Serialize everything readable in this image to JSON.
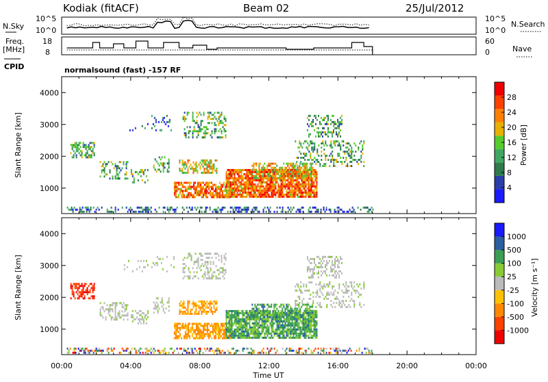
{
  "header": {
    "site": "Kodiak (fitACF)",
    "beam": "Beam 02",
    "date": "25/Jul/2012"
  },
  "noise_panel": {
    "left_label": "N.Sky",
    "right_label": "N.Search",
    "left_ticks": [
      "10^5",
      "10^0"
    ],
    "right_ticks": [
      "10^5",
      "10^0"
    ]
  },
  "freq_panel": {
    "left_label_1": "Freq.",
    "left_label_2": "[MHz]",
    "right_label": "Nave",
    "left_ticks": [
      "18",
      "8"
    ],
    "right_ticks": [
      "60",
      "0"
    ]
  },
  "cpid": {
    "label": "CPID",
    "value": "normalsound (fast) -157 RF"
  },
  "colors": {
    "power": [
      "#1a1aff",
      "#2a3fa8",
      "#2e7a4a",
      "#3fa860",
      "#55cc2a",
      "#e8b000",
      "#ff8000",
      "#ff4000",
      "#ee0000"
    ],
    "velocity": [
      "#ee0000",
      "#ff4000",
      "#ff8800",
      "#ffc000",
      "#bbbbbb",
      "#88cc33",
      "#3a9e55",
      "#2a5fa0",
      "#1a1aff"
    ]
  },
  "chart_data": [
    {
      "type": "heatmap",
      "name": "power",
      "ylabel": "Slant Range [km]",
      "xlabel": "Time UT",
      "x_range_hours": [
        0,
        24
      ],
      "ylim_km": [
        200,
        4500
      ],
      "y_ticks": [
        "1000",
        "2000",
        "3000",
        "4000"
      ],
      "x_ticks": [
        "00:00",
        "04:00",
        "08:00",
        "12:00",
        "16:00",
        "20:00",
        "00:00"
      ],
      "colorbar": {
        "label": "Power [dB]",
        "ticks": [
          "4",
          "8",
          "12",
          "16",
          "20",
          "24",
          "28"
        ],
        "range": [
          0,
          30
        ]
      },
      "data_extent_hours": [
        0.3,
        18.0
      ]
    },
    {
      "type": "heatmap",
      "name": "velocity",
      "ylabel": "Slant Range [km]",
      "xlabel": "Time UT",
      "x_range_hours": [
        0,
        24
      ],
      "ylim_km": [
        200,
        4500
      ],
      "y_ticks": [
        "1000",
        "2000",
        "3000",
        "4000"
      ],
      "x_ticks": [
        "00:00",
        "04:00",
        "08:00",
        "12:00",
        "16:00",
        "20:00",
        "00:00"
      ],
      "colorbar": {
        "label": "Velocity [m s⁻¹]",
        "ticks": [
          "1000",
          "500",
          "100",
          "25",
          "-25",
          "-100",
          "-500",
          "-1000"
        ]
      },
      "data_extent_hours": [
        0.3,
        18.0
      ]
    }
  ],
  "axis_title": "Time UT"
}
